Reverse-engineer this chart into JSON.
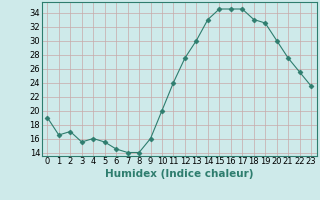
{
  "x": [
    0,
    1,
    2,
    3,
    4,
    5,
    6,
    7,
    8,
    9,
    10,
    11,
    12,
    13,
    14,
    15,
    16,
    17,
    18,
    19,
    20,
    21,
    22,
    23
  ],
  "y": [
    19,
    16.5,
    17,
    15.5,
    16,
    15.5,
    14.5,
    14,
    14,
    16,
    20,
    24,
    27.5,
    30,
    33,
    34.5,
    34.5,
    34.5,
    33,
    32.5,
    30,
    27.5,
    25.5,
    23.5
  ],
  "xlabel": "Humidex (Indice chaleur)",
  "ylim": [
    13.5,
    35.5
  ],
  "yticks": [
    14,
    16,
    18,
    20,
    22,
    24,
    26,
    28,
    30,
    32,
    34
  ],
  "xlim": [
    -0.5,
    23.5
  ],
  "line_color": "#2e7d6e",
  "marker": "D",
  "marker_size": 2.5,
  "bg_color": "#ceeaea",
  "grid_color": "#c8a8a8",
  "xlabel_fontsize": 7.5,
  "tick_fontsize": 6
}
